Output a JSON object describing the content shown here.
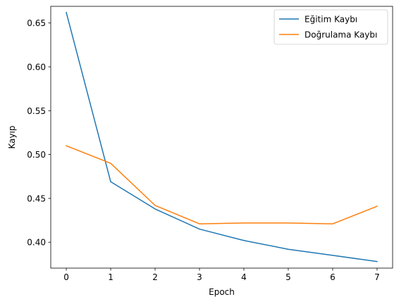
{
  "chart_data": {
    "type": "line",
    "xlabel": "Epoch",
    "ylabel": "Kayıp",
    "xlim": [
      -0.35,
      7.35
    ],
    "ylim": [
      0.3705,
      0.669
    ],
    "x_ticks": [
      0,
      1,
      2,
      3,
      4,
      5,
      6,
      7
    ],
    "y_ticks": [
      0.4,
      0.45,
      0.5,
      0.55,
      0.6,
      0.65
    ],
    "y_tick_labels": [
      "0.40",
      "0.45",
      "0.50",
      "0.55",
      "0.60",
      "0.65"
    ],
    "x_tick_labels": [
      "0",
      "1",
      "2",
      "3",
      "4",
      "5",
      "6",
      "7"
    ],
    "grid": false,
    "legend_position": "top-right",
    "x": [
      0,
      1,
      2,
      3,
      4,
      5,
      6,
      7
    ],
    "series": [
      {
        "name": "Eğitim Kaybı",
        "color": "#1f77b4",
        "values": [
          0.662,
          0.469,
          0.438,
          0.415,
          0.402,
          0.392,
          0.385,
          0.378
        ]
      },
      {
        "name": "Doğrulama Kaybı",
        "color": "#ff7f0e",
        "values": [
          0.51,
          0.49,
          0.442,
          0.421,
          0.422,
          0.422,
          0.421,
          0.441
        ]
      }
    ]
  }
}
